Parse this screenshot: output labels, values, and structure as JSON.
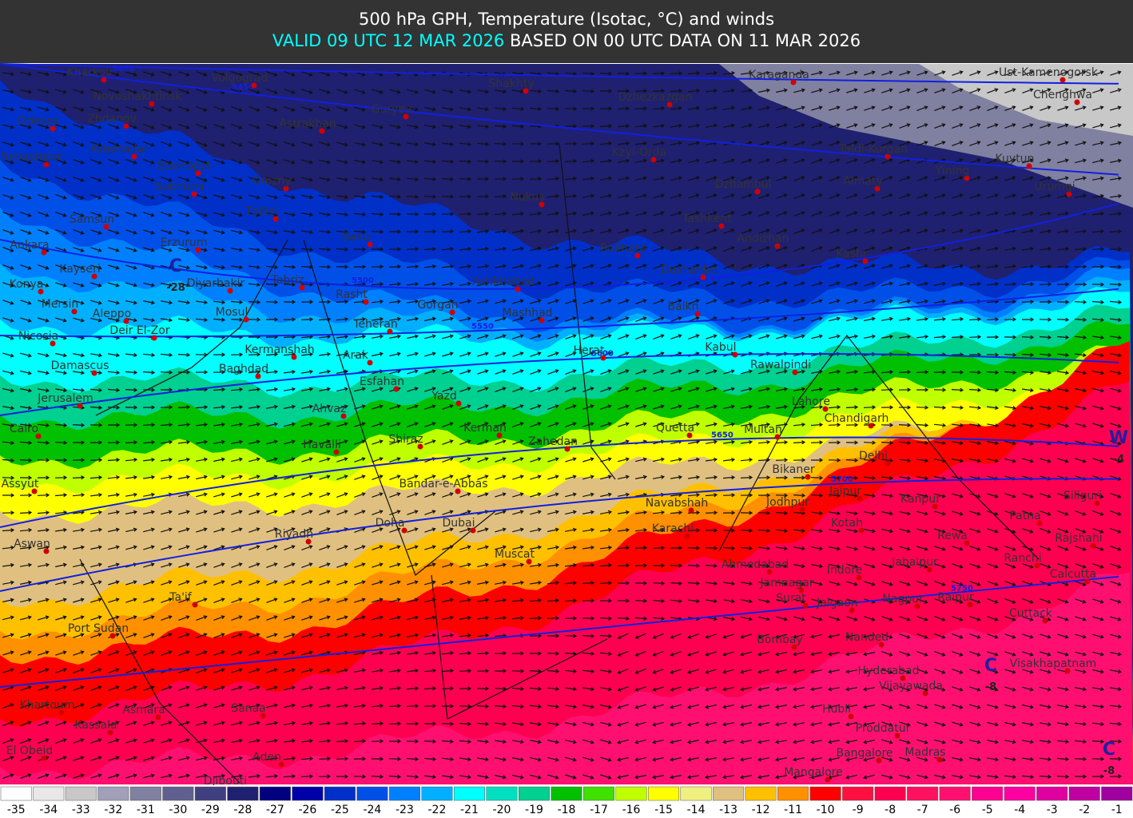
{
  "header": {
    "title": "500 hPa GPH, Temperature (Isotac, °C) and winds",
    "valid": "VALID 09 UTC 12 MAR 2026",
    "based": "BASED ON 00 UTC DATA ON 11 MAR 2026"
  },
  "map": {
    "cities": [
      "Kharkov",
      "Volgograd",
      "Novoshakhtinsk",
      "Odessa",
      "Zhdanov",
      "Guryev",
      "Astrakhan",
      "Shakhty",
      "Dzhezkazgan",
      "Karaganda",
      "Ust-Kamenogorsk",
      "Chenghwa",
      "Sevastopol",
      "Krasnodar",
      "Stavropol",
      "Kzyl-Orda",
      "Taldi-Kurgan",
      "Yining",
      "Kuytun",
      "Sukhumi",
      "Grozny",
      "Nukus",
      "Dzhambul",
      "Almaty",
      "Urumqi",
      "Tbilisi",
      "Samsun",
      "Tashkent",
      "Baku",
      "Erzurum",
      "Andizhan",
      "Ankara",
      "Bukhara",
      "Kashi",
      "Kayseri",
      "Dushanbe",
      "Tabriz",
      "Diyarbakir",
      "Konya",
      "Ashkhabad",
      "Rasht",
      "Gorgan",
      "Mersin",
      "Aleppo",
      "Mosul",
      "Mashhad",
      "Balkh",
      "Nicosia",
      "Deir El-Zor",
      "Teheran",
      "Kermanshah",
      "Arak",
      "Herat",
      "Kabul",
      "Damascus",
      "Baghdad",
      "Rawalpindi",
      "Esfahan",
      "Yazd",
      "Lahore",
      "Jerusalem",
      "Ahvaz",
      "Chandigarh",
      "Cairo",
      "Kerman",
      "Quetta",
      "Multan",
      "Shiraz",
      "Havalli",
      "Zahedan",
      "Delhi",
      "Bikaner",
      "Assyut",
      "Bandar-e-Abbas",
      "Jaipur",
      "Kanpur",
      "Siliguri",
      "Navabshah",
      "Jodhpur",
      "Patna",
      "Doha",
      "Dubai",
      "Kotah",
      "Rewa",
      "Rajshahi",
      "Riyadh",
      "Karachi",
      "Aswan",
      "Muscat",
      "Ranchi",
      "Ahmedabad",
      "Jabalpur",
      "Calcutta",
      "Indore",
      "Jamnagar",
      "Ta'if",
      "Surat",
      "Jalgaon",
      "Nagpur",
      "Raipur",
      "Cuttack",
      "Port Sudan",
      "Bombay",
      "Nanded",
      "Visakhapatnam",
      "Hyderabad",
      "Vijayawada",
      "Khartoum",
      "Asmara",
      "Sanaa",
      "Hubli",
      "Kassala",
      "Proddatur",
      "El Obeid",
      "Aden",
      "Bangalore",
      "Madras",
      "Mangalore",
      "Djibouti"
    ],
    "contours": [
      5400,
      5450,
      5500,
      5550,
      5600,
      5650,
      5700,
      5750
    ],
    "extrema": [
      {
        "symbol": "C",
        "value": -28
      },
      {
        "symbol": "W",
        "value": -4
      },
      {
        "symbol": "C",
        "value": -8
      },
      {
        "symbol": "C",
        "value": -8
      }
    ]
  },
  "colorbar": {
    "labels": [
      -35,
      -34,
      -33,
      -32,
      -31,
      -30,
      -29,
      -28,
      -27,
      -26,
      -25,
      -24,
      -23,
      -22,
      -21,
      -20,
      -19,
      -18,
      -17,
      -16,
      -15,
      -14,
      -13,
      -12,
      -11,
      -10,
      -9,
      -8,
      -7,
      -6,
      -5,
      -4,
      -3,
      -2,
      -1
    ],
    "colors": [
      "#ffffff",
      "#e8e8e8",
      "#c8c8c8",
      "#a0a0b8",
      "#8080a0",
      "#606090",
      "#404080",
      "#202070",
      "#000080",
      "#0000a8",
      "#0030c8",
      "#0050e8",
      "#0080ff",
      "#00b0ff",
      "#00ffff",
      "#00e0c0",
      "#00d090",
      "#00c000",
      "#40e000",
      "#c0ff00",
      "#ffff00",
      "#f0f080",
      "#e0c080",
      "#ffc000",
      "#ff9000",
      "#ff0000",
      "#ff1040",
      "#ff0050",
      "#ff1060",
      "#ff1070",
      "#ff0090",
      "#ff00a0",
      "#e000a0",
      "#c000a0",
      "#a000a0"
    ]
  }
}
